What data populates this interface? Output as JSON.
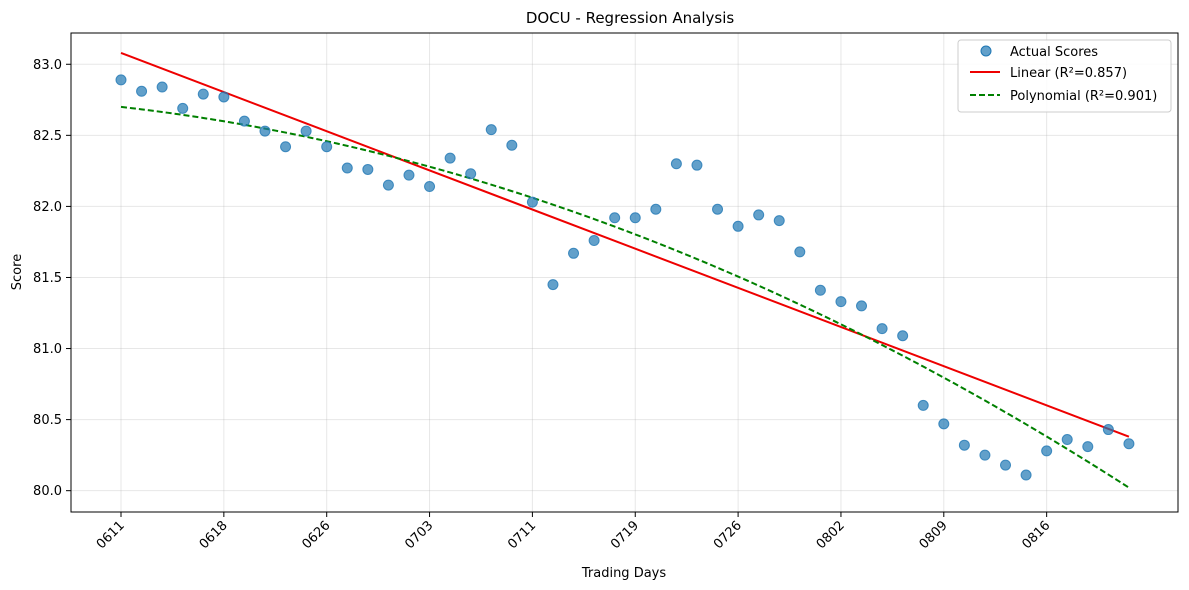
{
  "chart_data": {
    "type": "scatter",
    "title": "DOCU - Regression Analysis",
    "xlabel": "Trading Days",
    "ylabel": "Score",
    "ylim": [
      79.85,
      83.22
    ],
    "grid": true,
    "legend_position": "top-right",
    "x_tick_labels": [
      "0611",
      "0618",
      "0626",
      "0703",
      "0711",
      "0719",
      "0726",
      "0802",
      "0809",
      "0816"
    ],
    "x_tick_indices": [
      0,
      5,
      10,
      15,
      20,
      25,
      30,
      35,
      40,
      45
    ],
    "y_ticks": [
      80.0,
      80.5,
      81.0,
      81.5,
      82.0,
      82.5,
      83.0
    ],
    "y_tick_labels": [
      "80.0",
      "80.5",
      "81.0",
      "81.5",
      "82.0",
      "82.5",
      "83.0"
    ],
    "series": [
      {
        "name": "Actual Scores",
        "kind": "scatter",
        "color": "#1f77b4",
        "values": [
          82.89,
          82.81,
          82.84,
          82.69,
          82.79,
          82.77,
          82.6,
          82.53,
          82.42,
          82.53,
          82.42,
          82.27,
          82.26,
          82.15,
          82.22,
          82.14,
          82.34,
          82.23,
          82.54,
          82.43,
          82.03,
          81.45,
          81.67,
          81.76,
          81.92,
          81.92,
          81.98,
          82.3,
          82.29,
          81.98,
          81.86,
          81.94,
          81.9,
          81.68,
          81.41,
          81.33,
          81.3,
          81.14,
          81.09,
          80.6,
          80.47,
          80.32,
          80.25,
          80.18,
          80.11,
          80.28,
          80.36,
          80.31,
          80.43,
          80.33
        ]
      },
      {
        "name": "Linear (R²=0.857)",
        "kind": "line",
        "color": "#ee0000",
        "start": 83.08,
        "end": 80.38
      },
      {
        "name": "Polynomial (R²=0.901)",
        "kind": "dashed-line",
        "color": "#008000",
        "coefficients": [
          82.7,
          -0.0163,
          -0.000783
        ]
      }
    ]
  }
}
